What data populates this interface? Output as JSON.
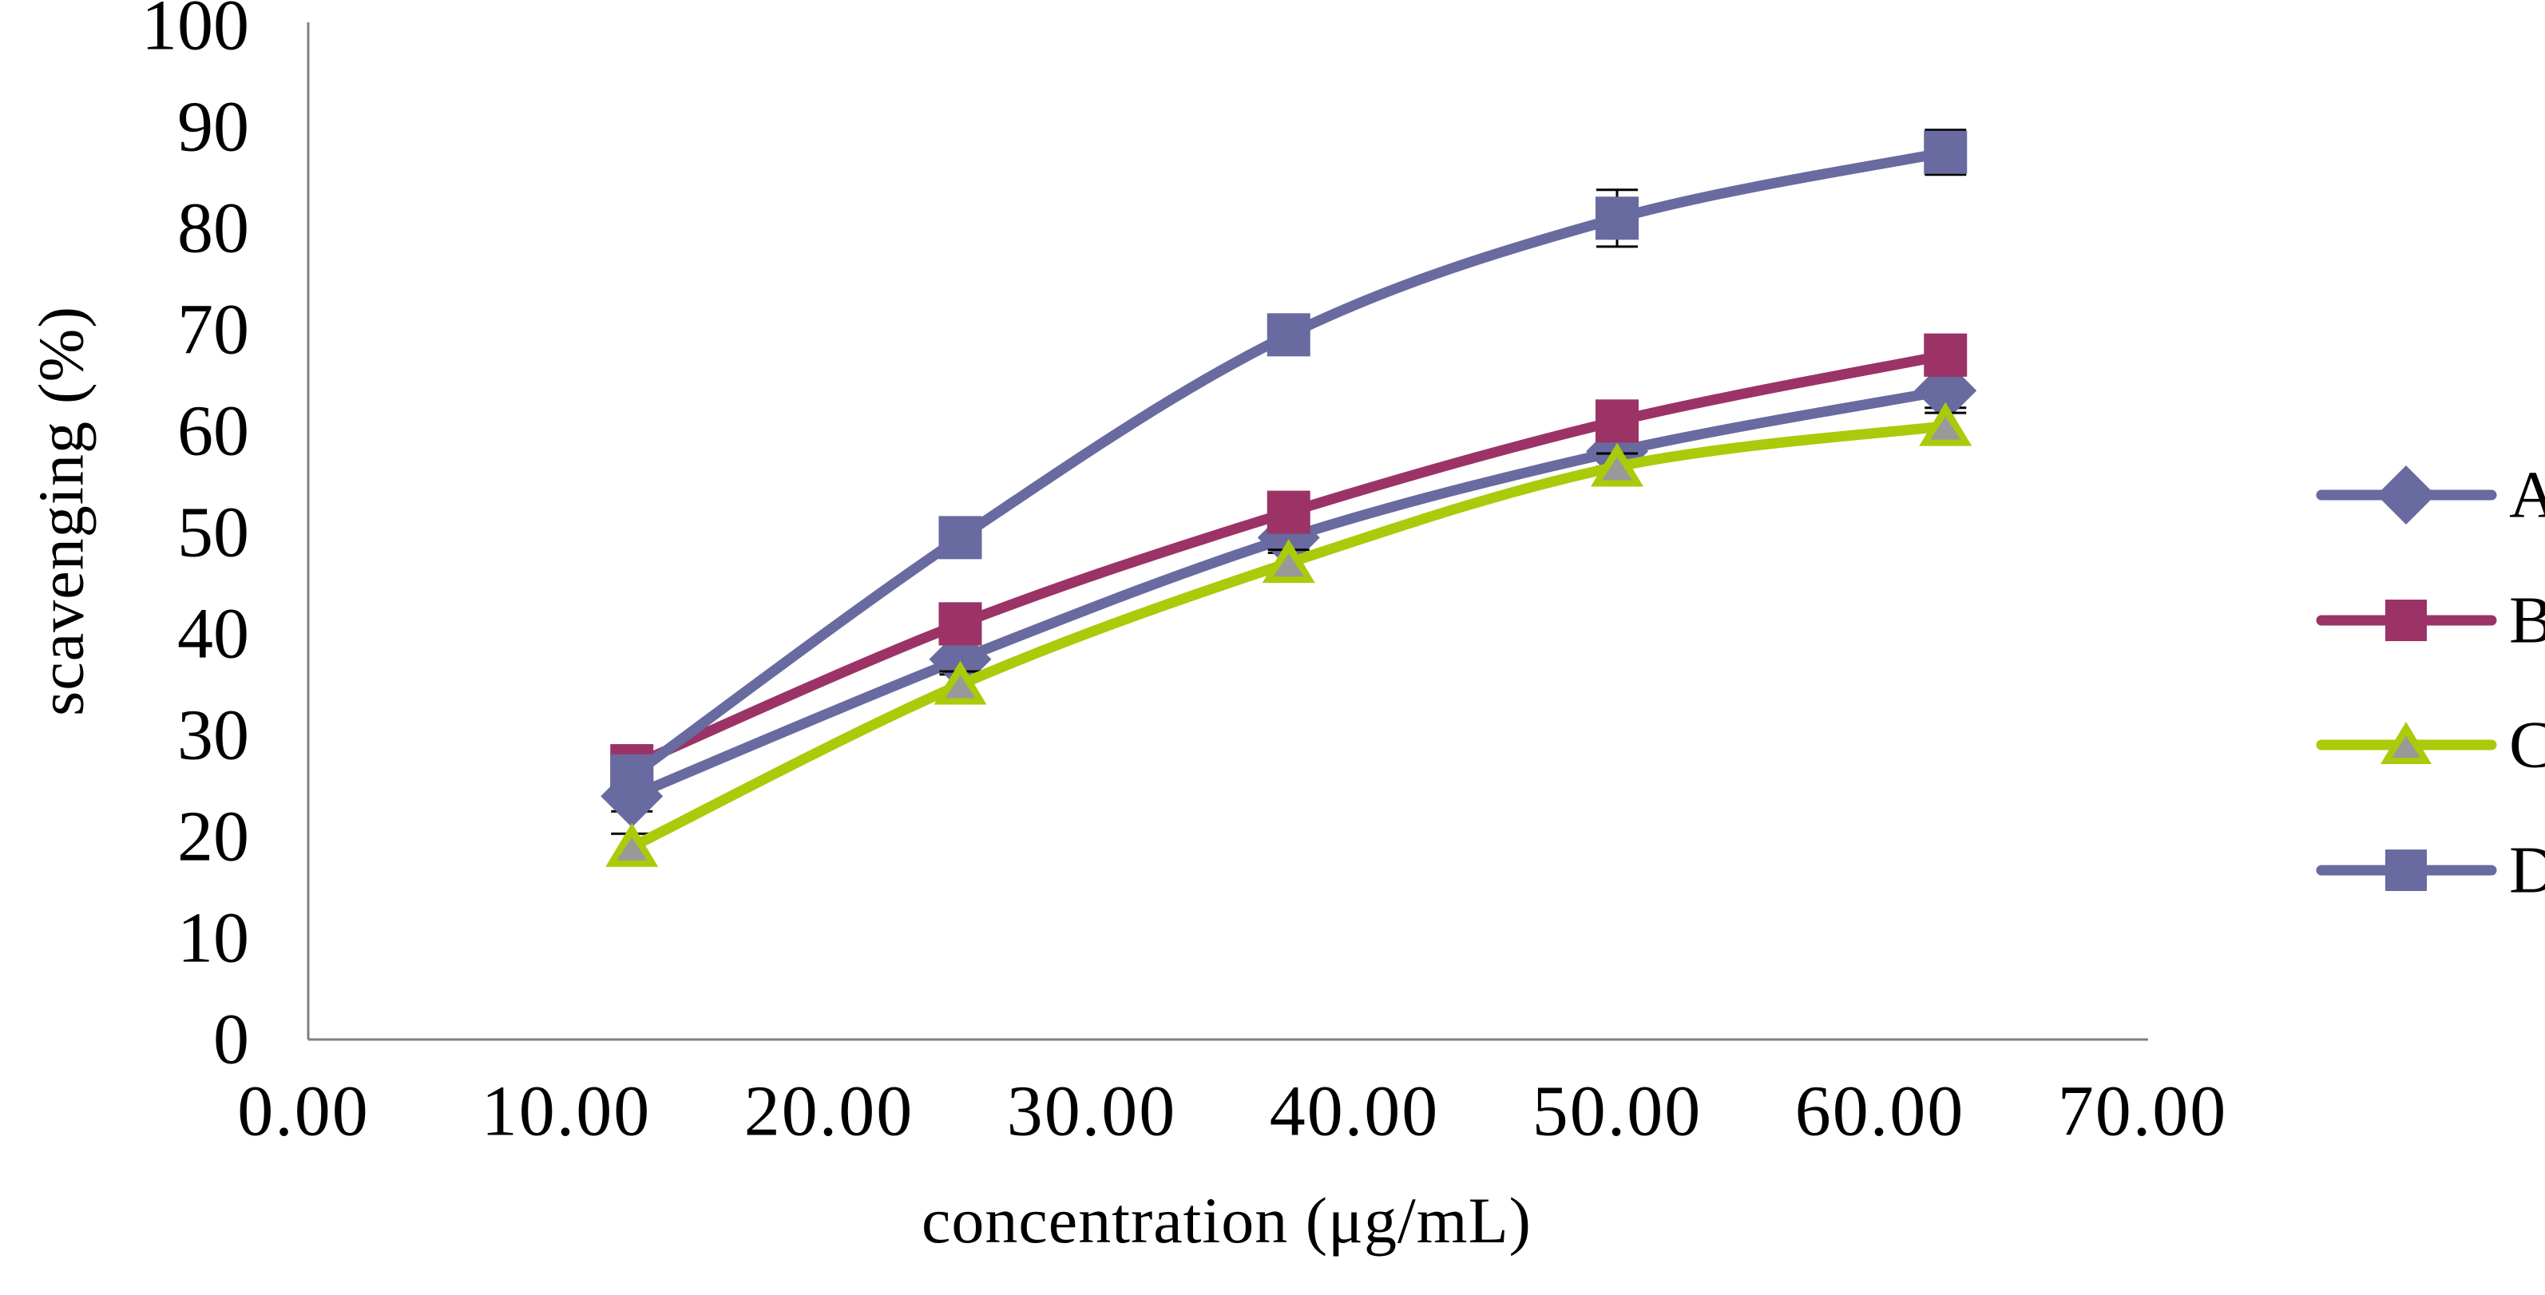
{
  "chart_data": {
    "type": "line",
    "title": "",
    "xlabel": "concentration (μg/mL)",
    "ylabel": "scavenging (%)",
    "x": [
      12.5,
      25.0,
      37.5,
      50.0,
      62.5
    ],
    "series": [
      {
        "name": "A",
        "marker": "diamond",
        "color": "#686AA0",
        "values": [
          24.0,
          37.5,
          49.5,
          58.0,
          64.0
        ],
        "errors": [
          1.5,
          1.5,
          1.5,
          1.5,
          1.7
        ]
      },
      {
        "name": "B",
        "marker": "square",
        "color": "#9C3366",
        "values": [
          27.0,
          41.0,
          52.0,
          61.0,
          67.5
        ],
        "errors": [
          2.0,
          1.5,
          1.5,
          1.5,
          2.0
        ]
      },
      {
        "name": "C",
        "marker": "triangle",
        "color": "#A9CB0A",
        "marker_fill": "#999999",
        "values": [
          19.0,
          35.0,
          47.0,
          56.5,
          60.5
        ],
        "errors": [
          1.3,
          1.3,
          1.3,
          1.3,
          1.3
        ]
      },
      {
        "name": "D",
        "marker": "square",
        "color": "#686AA0",
        "values": [
          26.0,
          49.5,
          69.5,
          81.0,
          87.5
        ],
        "errors": [
          1.5,
          1.5,
          1.5,
          2.8,
          2.2
        ]
      }
    ],
    "x_ticks": [
      "0.00",
      "10.00",
      "20.00",
      "30.00",
      "40.00",
      "50.00",
      "60.00",
      "70.00"
    ],
    "y_ticks": [
      "0",
      "10",
      "20",
      "30",
      "40",
      "50",
      "60",
      "70",
      "80",
      "90",
      "100"
    ],
    "xlim": [
      0,
      70
    ],
    "ylim": [
      0,
      100
    ],
    "grid": false,
    "smoothed_lines": true,
    "legend_position": "right",
    "legend_labels": [
      "A",
      "B",
      "C",
      "D"
    ],
    "error_bar_color": "#000000",
    "axis_color": "#808080"
  }
}
